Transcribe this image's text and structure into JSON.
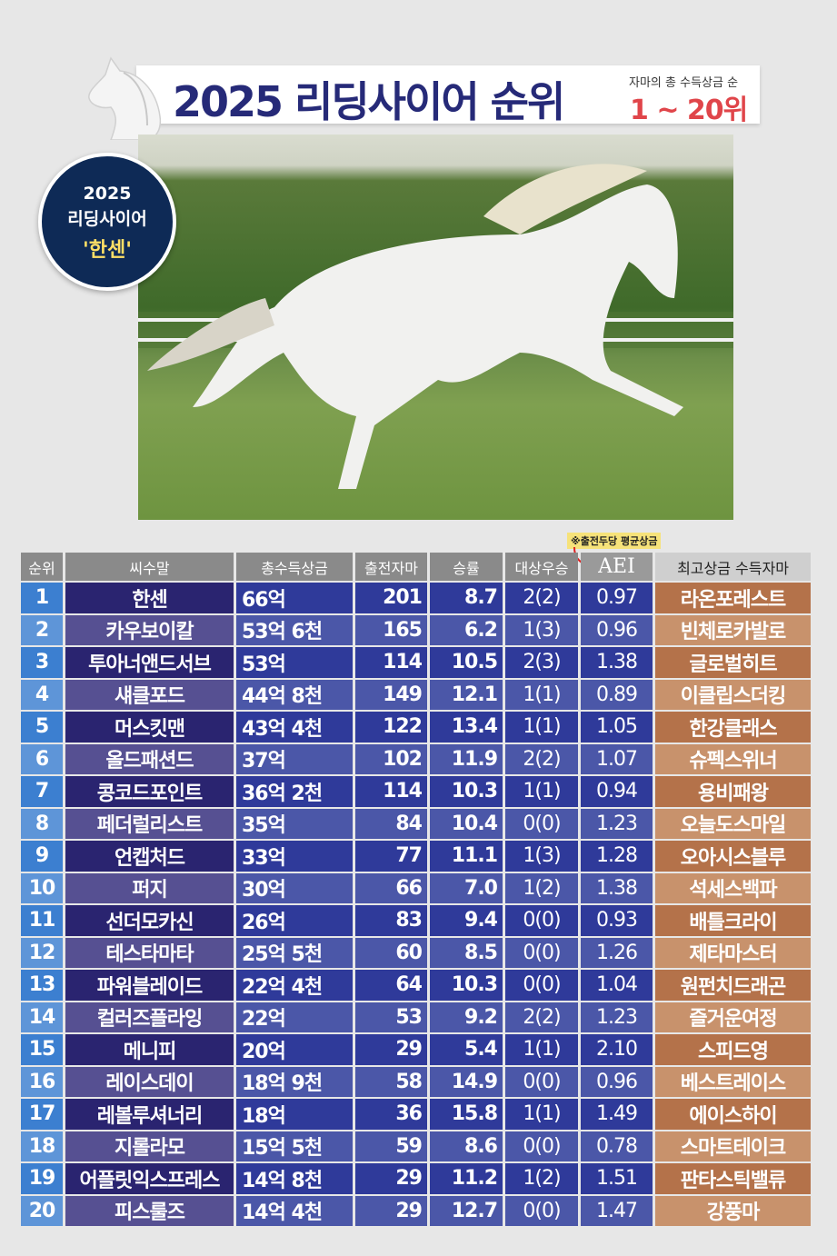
{
  "header": {
    "title": "2025 리딩사이어 순위",
    "subtitle": "자마의 총 수득상금 순",
    "range": "1 ~ 20위"
  },
  "badge": {
    "year": "2025",
    "label": "리딩사이어",
    "name": "'한센'"
  },
  "note": "※출전두당 평균상금",
  "colors": {
    "title": "#262a78",
    "range": "#e0454a",
    "badge": "#0e2a56",
    "top_horse": "#b4724a"
  },
  "table": {
    "columns": [
      "순위",
      "씨수말",
      "총수득상금",
      "출전자마",
      "승률",
      "대상우승",
      "AEI",
      "최고상금 수득자마"
    ],
    "rows": [
      [
        "1",
        "한센",
        "66억",
        "201",
        "8.7",
        "2(2)",
        "0.97",
        "라온포레스트"
      ],
      [
        "2",
        "카우보이칼",
        "53억 6천",
        "165",
        "6.2",
        "1(3)",
        "0.96",
        "빈체로카발로"
      ],
      [
        "3",
        "투아너앤드서브",
        "53억",
        "114",
        "10.5",
        "2(3)",
        "1.38",
        "글로벌히트"
      ],
      [
        "4",
        "섀클포드",
        "44억 8천",
        "149",
        "12.1",
        "1(1)",
        "0.89",
        "이클립스더킹"
      ],
      [
        "5",
        "머스킷맨",
        "43억 4천",
        "122",
        "13.4",
        "1(1)",
        "1.05",
        "한강클래스"
      ],
      [
        "6",
        "올드패션드",
        "37억",
        "102",
        "11.9",
        "2(2)",
        "1.07",
        "슈펙스위너"
      ],
      [
        "7",
        "콩코드포인트",
        "36억 2천",
        "114",
        "10.3",
        "1(1)",
        "0.94",
        "용비패왕"
      ],
      [
        "8",
        "페더럴리스트",
        "35억",
        "84",
        "10.4",
        "0(0)",
        "1.23",
        "오늘도스마일"
      ],
      [
        "9",
        "언캡처드",
        "33억",
        "77",
        "11.1",
        "1(3)",
        "1.28",
        "오아시스블루"
      ],
      [
        "10",
        "퍼지",
        "30억",
        "66",
        "7.0",
        "1(2)",
        "1.38",
        "석세스백파"
      ],
      [
        "11",
        "선더모카신",
        "26억",
        "83",
        "9.4",
        "0(0)",
        "0.93",
        "배틀크라이"
      ],
      [
        "12",
        "테스타마타",
        "25억 5천",
        "60",
        "8.5",
        "0(0)",
        "1.26",
        "제타마스터"
      ],
      [
        "13",
        "파워블레이드",
        "22억 4천",
        "64",
        "10.3",
        "0(0)",
        "1.04",
        "원펀치드래곤"
      ],
      [
        "14",
        "컬러즈플라잉",
        "22억",
        "53",
        "9.2",
        "2(2)",
        "1.23",
        "즐거운여정"
      ],
      [
        "15",
        "메니피",
        "20억",
        "29",
        "5.4",
        "1(1)",
        "2.10",
        "스피드영"
      ],
      [
        "16",
        "레이스데이",
        "18억 9천",
        "58",
        "14.9",
        "0(0)",
        "0.96",
        "베스트레이스"
      ],
      [
        "17",
        "레볼루셔너리",
        "18억",
        "36",
        "15.8",
        "1(1)",
        "1.49",
        "에이스하이"
      ],
      [
        "18",
        "지롤라모",
        "15억 5천",
        "59",
        "8.6",
        "0(0)",
        "0.78",
        "스마트테이크"
      ],
      [
        "19",
        "어플릿익스프레스",
        "14억 8천",
        "29",
        "11.2",
        "1(2)",
        "1.51",
        "판타스틱밸류"
      ],
      [
        "20",
        "피스룰즈",
        "14억 4천",
        "29",
        "12.7",
        "0(0)",
        "1.47",
        "강풍마"
      ]
    ]
  }
}
